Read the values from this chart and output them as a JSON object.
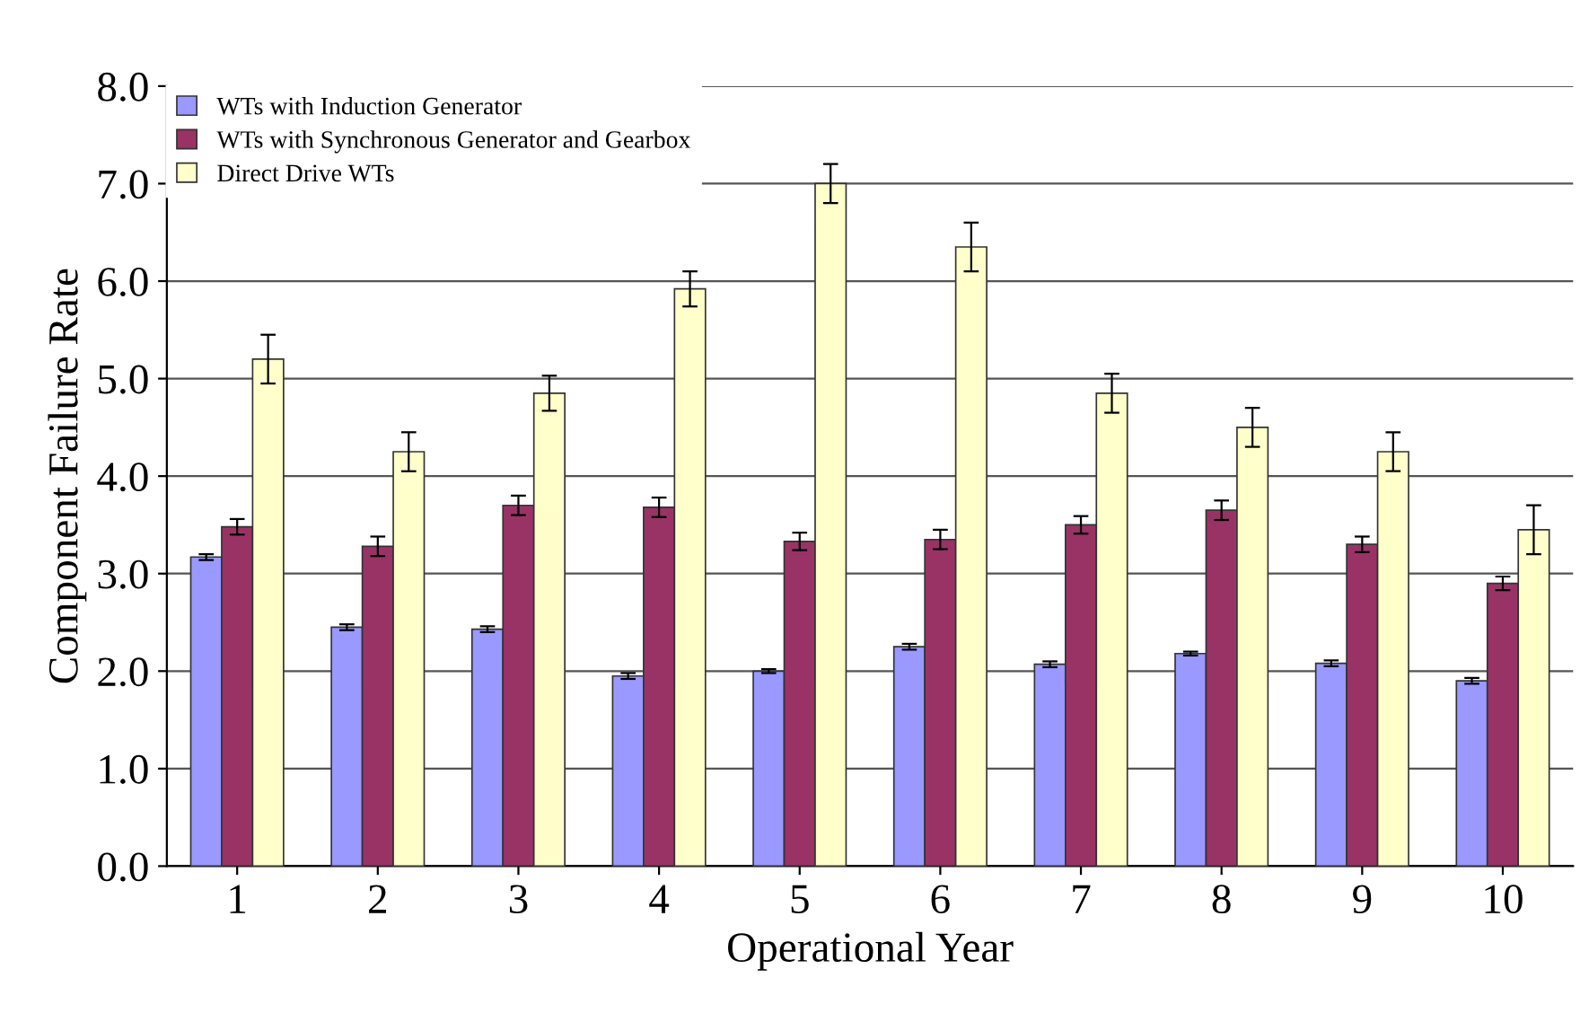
{
  "chart_data": {
    "type": "bar",
    "xlabel": "Operational Year",
    "ylabel": "Component Failure Rate",
    "categories": [
      "1",
      "2",
      "3",
      "4",
      "5",
      "6",
      "7",
      "8",
      "9",
      "10"
    ],
    "series": [
      {
        "name": "WTs with Induction Generator",
        "color": "#9999ff",
        "values": [
          3.17,
          2.45,
          2.43,
          1.95,
          2.0,
          2.25,
          2.07,
          2.18,
          2.08,
          1.9
        ],
        "errors": [
          0.03,
          0.03,
          0.03,
          0.03,
          0.02,
          0.03,
          0.03,
          0.02,
          0.03,
          0.03
        ]
      },
      {
        "name": "WTs with Synchronous Generator and Gearbox",
        "color": "#993366",
        "values": [
          3.48,
          3.28,
          3.7,
          3.68,
          3.33,
          3.35,
          3.5,
          3.65,
          3.3,
          2.9
        ],
        "errors": [
          0.08,
          0.1,
          0.1,
          0.1,
          0.09,
          0.1,
          0.09,
          0.1,
          0.08,
          0.07
        ]
      },
      {
        "name": "Direct Drive WTs",
        "color": "#ffffcc",
        "values": [
          5.2,
          4.25,
          4.85,
          5.92,
          7.0,
          6.35,
          4.85,
          4.5,
          4.25,
          3.45
        ],
        "errors": [
          0.25,
          0.2,
          0.18,
          0.18,
          0.2,
          0.25,
          0.2,
          0.2,
          0.2,
          0.25
        ]
      }
    ],
    "ylim": [
      0,
      8
    ],
    "yticks": [
      {
        "value": 0,
        "label": "0.0"
      },
      {
        "value": 1,
        "label": "1.0"
      },
      {
        "value": 2,
        "label": "2.0"
      },
      {
        "value": 3,
        "label": "3.0"
      },
      {
        "value": 4,
        "label": "4.0"
      },
      {
        "value": 5,
        "label": "5.0"
      },
      {
        "value": 6,
        "label": "6.0"
      },
      {
        "value": 7,
        "label": "7.0"
      },
      {
        "value": 8,
        "label": "8.0"
      }
    ],
    "grid": "y",
    "legend": "top left"
  }
}
